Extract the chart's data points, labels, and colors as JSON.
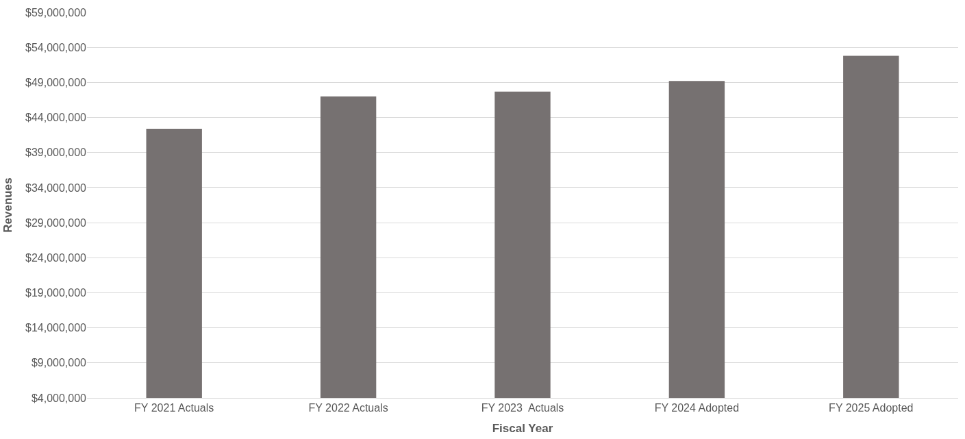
{
  "chart_data": {
    "type": "bar",
    "xlabel": "Fiscal Year",
    "ylabel": "Revenues",
    "categories": [
      "FY 2021 Actuals",
      "FY 2022 Actuals",
      "FY 2023  Actuals",
      "FY 2024 Adopted",
      "FY 2025 Adopted"
    ],
    "values": [
      42400000,
      47000000,
      47700000,
      49200000,
      52800000
    ],
    "color": "#767171",
    "ylim": [
      4000000,
      59000000
    ],
    "yticks": [
      {
        "value": 4000000,
        "label": "$4,000,000"
      },
      {
        "value": 9000000,
        "label": "$9,000,000"
      },
      {
        "value": 14000000,
        "label": "$14,000,000"
      },
      {
        "value": 19000000,
        "label": "$19,000,000"
      },
      {
        "value": 24000000,
        "label": "$24,000,000"
      },
      {
        "value": 29000000,
        "label": "$29,000,000"
      },
      {
        "value": 34000000,
        "label": "$34,000,000"
      },
      {
        "value": 39000000,
        "label": "$39,000,000"
      },
      {
        "value": 44000000,
        "label": "$44,000,000"
      },
      {
        "value": 49000000,
        "label": "$49,000,000"
      },
      {
        "value": 54000000,
        "label": "$54,000,000"
      },
      {
        "value": 59000000,
        "label": "$59,000,000"
      }
    ],
    "grid": "y"
  }
}
